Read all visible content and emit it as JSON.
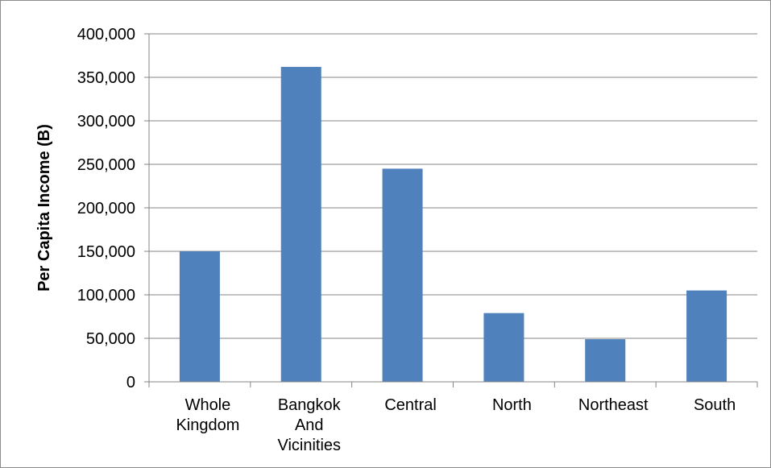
{
  "chart_data": {
    "type": "bar",
    "categories": [
      [
        "Whole",
        "Kingdom"
      ],
      [
        "Bangkok",
        "And",
        "Vicinities"
      ],
      [
        "Central"
      ],
      [
        "North"
      ],
      [
        "Northeast"
      ],
      [
        "South"
      ]
    ],
    "values": [
      150000,
      362000,
      245000,
      79000,
      49000,
      105000
    ],
    "ylabel": "Per Capita Income (B)",
    "ylim": [
      0,
      400000
    ],
    "yticks": [
      0,
      50000,
      100000,
      150000,
      200000,
      250000,
      300000,
      350000,
      400000
    ],
    "ytick_labels": [
      "0",
      "50,000",
      "100,000",
      "150,000",
      "200,000",
      "250,000",
      "300,000",
      "350,000",
      "400,000"
    ],
    "grid": true,
    "bar_color": "#4f81bd",
    "grid_color": "#868686"
  }
}
